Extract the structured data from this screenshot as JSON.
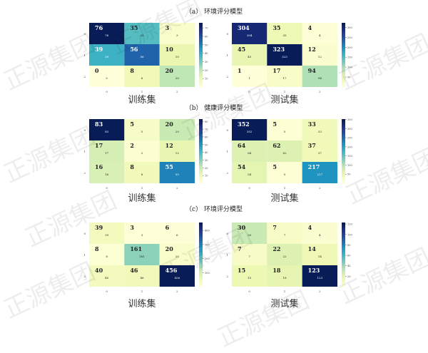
{
  "watermark": "正源集团",
  "colormap": "YlGnBu",
  "chart_data": [
    {
      "type": "heatmap",
      "group_title": "（a） 环境评分模型",
      "title": "训练集",
      "x_ticks": [
        "0",
        "1",
        "2"
      ],
      "y_ticks": [
        "0",
        "1",
        "2"
      ],
      "values": [
        [
          76,
          35,
          3
        ],
        [
          39,
          56,
          10
        ],
        [
          0,
          8,
          20
        ]
      ],
      "colorbar_range": [
        0,
        76
      ]
    },
    {
      "type": "heatmap",
      "group_title": "",
      "title": "测试集",
      "x_ticks": [
        "0",
        "1",
        "2"
      ],
      "y_ticks": [
        "0",
        "1",
        "2"
      ],
      "values": [
        [
          304,
          35,
          4
        ],
        [
          45,
          323,
          12
        ],
        [
          1,
          17,
          94
        ]
      ],
      "colorbar_range": [
        0,
        323
      ]
    },
    {
      "type": "heatmap",
      "group_title": "（b） 健康评分模型",
      "title": "训练集",
      "x_ticks": [
        "0",
        "1",
        "2"
      ],
      "y_ticks": [
        "0",
        "1",
        "2"
      ],
      "values": [
        [
          83,
          5,
          20
        ],
        [
          17,
          2,
          12
        ],
        [
          16,
          8,
          55
        ]
      ],
      "colorbar_range": [
        0,
        83
      ]
    },
    {
      "type": "heatmap",
      "group_title": "",
      "title": "测试集",
      "x_ticks": [
        "0",
        "1",
        "2"
      ],
      "y_ticks": [
        "0",
        "1",
        "2"
      ],
      "values": [
        [
          352,
          5,
          33
        ],
        [
          64,
          62,
          37
        ],
        [
          54,
          5,
          217
        ]
      ],
      "colorbar_range": [
        0,
        352
      ]
    },
    {
      "type": "heatmap",
      "group_title": "（c） 环境评分模型",
      "title": "训练集",
      "x_ticks": [
        "0",
        "1",
        "2"
      ],
      "y_ticks": [
        "0",
        "1",
        "2"
      ],
      "values": [
        [
          39,
          3,
          6
        ],
        [
          8,
          161,
          20
        ],
        [
          40,
          46,
          456
        ]
      ],
      "colorbar_range": [
        0,
        456
      ]
    },
    {
      "type": "heatmap",
      "group_title": "",
      "title": "测试集",
      "x_ticks": [
        "0",
        "1",
        "2"
      ],
      "y_ticks": [
        "0",
        "1",
        "2"
      ],
      "values": [
        [
          30,
          7,
          4
        ],
        [
          7,
          22,
          14
        ],
        [
          15,
          18,
          123
        ]
      ],
      "colorbar_range": [
        0,
        123
      ]
    }
  ]
}
